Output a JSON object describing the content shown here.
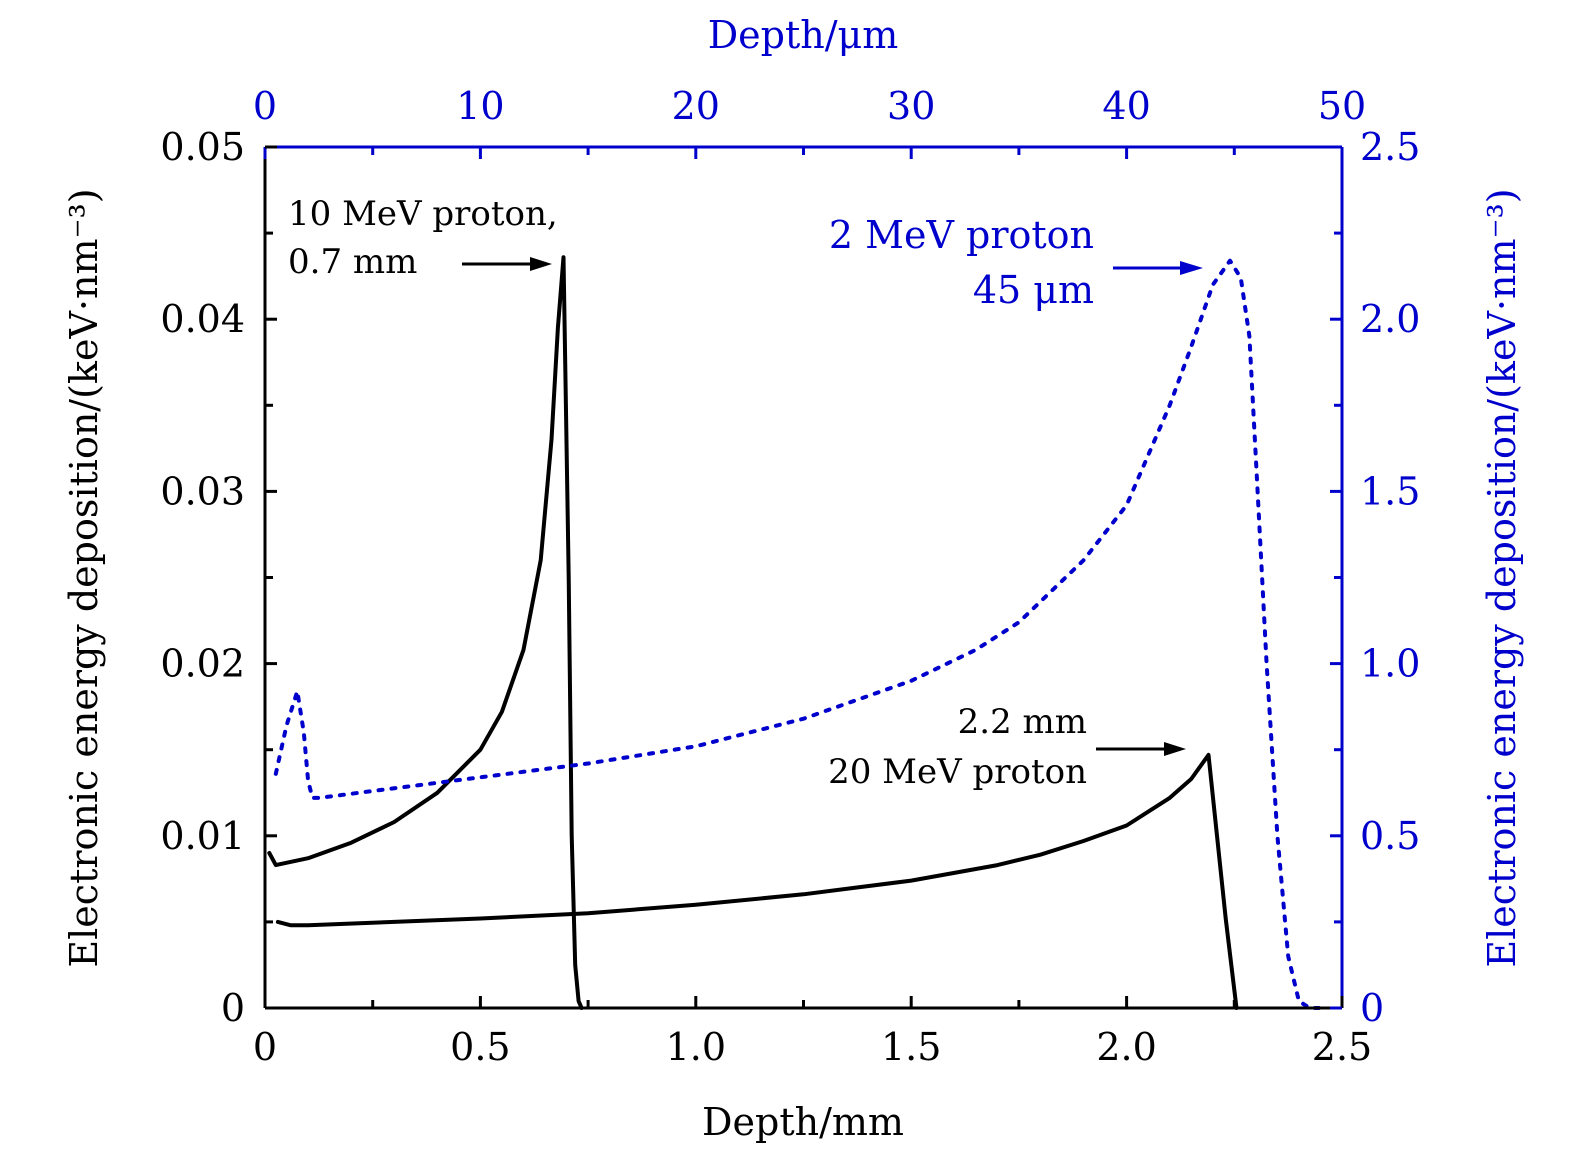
{
  "chart_data": {
    "type": "line",
    "title": "",
    "xlabel": "Depth/mm",
    "x2label": "Depth/μm",
    "ylabel": "Electronic energy deposition/(keV·nm⁻³)",
    "y2label": "Electronic energy deposition/(keV·nm⁻³)",
    "xlim": [
      0,
      2.5
    ],
    "x2lim": [
      0,
      50
    ],
    "ylim": [
      0,
      0.05
    ],
    "y2lim": [
      0,
      2.5
    ],
    "grid": false,
    "colors": {
      "primary": "#000000",
      "secondary": "#0000cc"
    },
    "x_ticks": [
      "0",
      "0.5",
      "1.0",
      "1.5",
      "2.0",
      "2.5"
    ],
    "x_tick_values": [
      0,
      0.5,
      1.0,
      1.5,
      2.0,
      2.5
    ],
    "x2_ticks": [
      "0",
      "10",
      "20",
      "30",
      "40",
      "50"
    ],
    "x2_tick_values": [
      0,
      10,
      20,
      30,
      40,
      50
    ],
    "y_ticks": [
      "0",
      "0.01",
      "0.02",
      "0.03",
      "0.04",
      "0.05"
    ],
    "y_tick_values": [
      0,
      0.01,
      0.02,
      0.03,
      0.04,
      0.05
    ],
    "y2_ticks": [
      "0",
      "0.5",
      "1.0",
      "1.5",
      "2.0",
      "2.5"
    ],
    "y2_tick_values": [
      0,
      0.5,
      1.0,
      1.5,
      2.0,
      2.5
    ],
    "series": [
      {
        "name": "10 MeV proton",
        "axis": "bottom-left",
        "style": "solid",
        "color": "#000000",
        "x": [
          0.01,
          0.025,
          0.1,
          0.2,
          0.3,
          0.4,
          0.5,
          0.55,
          0.6,
          0.64,
          0.665,
          0.68,
          0.693,
          0.705,
          0.712,
          0.72,
          0.728,
          0.735
        ],
        "y": [
          0.009,
          0.0083,
          0.0087,
          0.0096,
          0.0108,
          0.0125,
          0.015,
          0.0172,
          0.0208,
          0.026,
          0.033,
          0.0395,
          0.0436,
          0.025,
          0.01,
          0.0025,
          0.0004,
          0.0
        ]
      },
      {
        "name": "20 MeV proton",
        "axis": "bottom-left",
        "style": "solid",
        "color": "#000000",
        "x": [
          0.03,
          0.06,
          0.1,
          0.3,
          0.5,
          0.75,
          1.0,
          1.25,
          1.5,
          1.7,
          1.8,
          1.9,
          2.0,
          2.1,
          2.15,
          2.19,
          2.23,
          2.255
        ],
        "y": [
          0.005,
          0.0048,
          0.0048,
          0.005,
          0.0052,
          0.0055,
          0.006,
          0.0066,
          0.0074,
          0.0083,
          0.0089,
          0.0097,
          0.0106,
          0.0122,
          0.0133,
          0.0147,
          0.0052,
          0.0
        ]
      },
      {
        "name": "2 MeV proton",
        "axis": "top-right",
        "style": "dotted",
        "color": "#0000cc",
        "x": [
          0.5,
          1.0,
          1.5,
          1.8,
          2.0,
          2.2,
          2.5,
          5,
          10,
          15,
          20,
          25,
          30,
          33,
          35,
          38,
          40,
          42,
          43,
          44,
          44.8,
          45.3,
          45.7,
          46,
          46.5,
          47,
          47.5,
          48,
          48.5,
          49
        ],
        "y": [
          0.68,
          0.82,
          0.92,
          0.8,
          0.66,
          0.61,
          0.61,
          0.63,
          0.67,
          0.71,
          0.76,
          0.84,
          0.95,
          1.04,
          1.12,
          1.3,
          1.46,
          1.75,
          1.92,
          2.1,
          2.17,
          2.12,
          1.95,
          1.6,
          1.0,
          0.5,
          0.15,
          0.02,
          0.0,
          0.0
        ]
      }
    ],
    "annotations": [
      {
        "id": "ann-10mev",
        "lines": [
          "10 MeV proton,",
          "0.7 mm"
        ],
        "color": "#000000",
        "points_to": [
          0.69,
          0.0435
        ]
      },
      {
        "id": "ann-2mev",
        "lines": [
          "2 MeV proton",
          "45 μm"
        ],
        "color": "#0000cc",
        "points_to_um": [
          44.8,
          2.17
        ]
      },
      {
        "id": "ann-20mev",
        "lines": [
          "2.2 mm",
          "20 MeV proton"
        ],
        "color": "#000000",
        "points_to": [
          2.19,
          0.0147
        ]
      }
    ]
  }
}
